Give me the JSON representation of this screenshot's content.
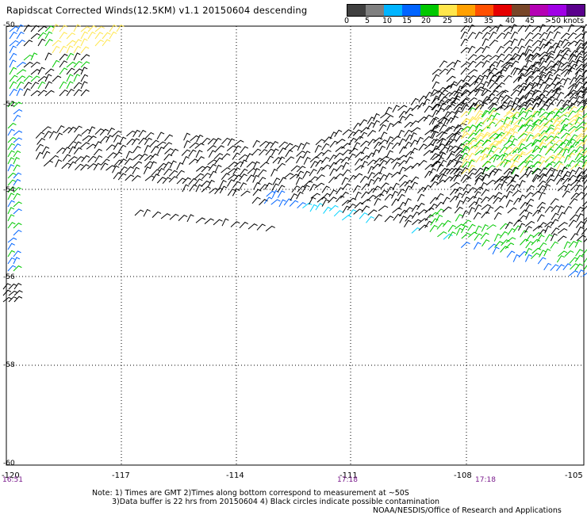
{
  "title": "Rapidscat Corrected Winds(12.5KM) v1.1 20150604 descending",
  "legend": {
    "colors": [
      "#404040",
      "#808080",
      "#00b4ff",
      "#0064ff",
      "#00c800",
      "#ffe64b",
      "#ffa000",
      "#ff5000",
      "#e60000",
      "#784628",
      "#b400b4",
      "#a000e6",
      "#5a008c"
    ],
    "labels": [
      "0",
      "5",
      "10",
      "15",
      "20",
      "25",
      "30",
      "35",
      "40",
      "45",
      ">50 knots"
    ]
  },
  "axes": {
    "lat_labels": [
      "-50",
      "-52",
      "-54",
      "-56",
      "-58",
      "-60"
    ],
    "lon_labels": [
      "-120",
      "-117",
      "-114",
      "-111",
      "-108",
      "-105"
    ]
  },
  "time_labels": [
    "16:51",
    "17:18",
    "17:18"
  ],
  "notes": [
    "Note: 1) Times are GMT 2)Times along bottom correspond to measurement at ~50S",
    "3)Data buffer is 22 hrs from 20150604 4) Black circles indicate possible contamination",
    "NOAA/NESDIS/Office of Research and Applications"
  ]
}
